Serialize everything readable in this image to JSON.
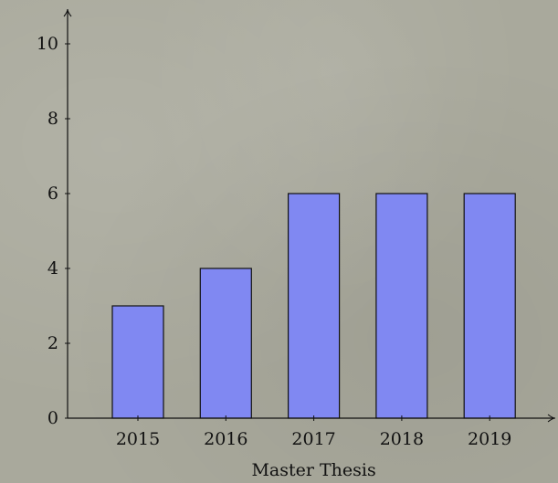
{
  "chart_data": {
    "type": "bar",
    "categories": [
      "2015",
      "2016",
      "2017",
      "2018",
      "2019"
    ],
    "values": [
      3,
      4,
      6,
      6,
      6
    ],
    "xlabel": "Master Thesis",
    "ylabel": "",
    "ylim": [
      0,
      10
    ],
    "yticks": [
      0,
      2,
      4,
      6,
      8,
      10
    ],
    "bar_color": "#8088f2",
    "bar_edge_color": "#111111",
    "axis_color": "#111111",
    "grid": false
  }
}
